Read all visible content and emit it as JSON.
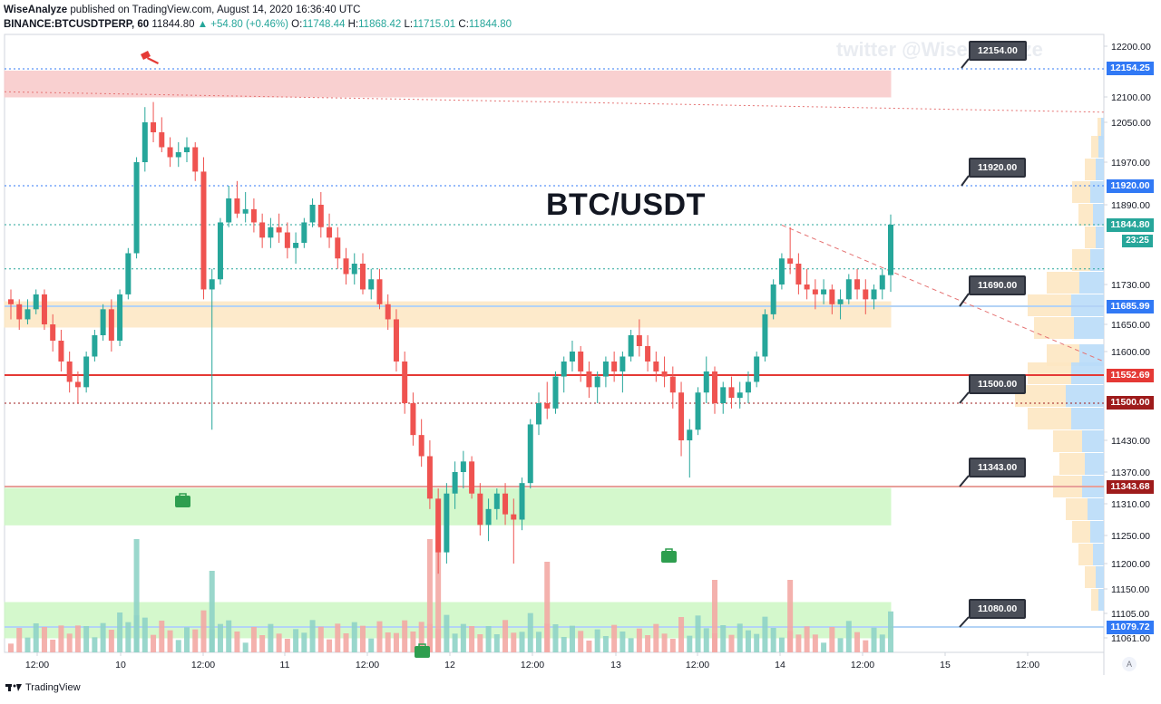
{
  "header": {
    "publisher": "WiseAnalyze",
    "published_text": "published on TradingView.com, August 14, 2020 16:36:40 UTC",
    "symbol": "BINANCE:BTCUSDTPERP, 60",
    "last": "11844.80",
    "change": "▲ +54.80 (+0.46%)",
    "o_label": "O:",
    "o_value": "11748.44",
    "h_label": "H:",
    "h_value": "11868.42",
    "l_label": "L:",
    "l_value": "11715.01",
    "c_label": "C:",
    "c_value": "11844.80"
  },
  "title": "BTC/USDT",
  "watermark": "twitter @WiseAnalyze",
  "footer_brand": "TradingView",
  "countdown": "23:25",
  "auto_label": "A",
  "callouts": [
    {
      "text": "12154.00"
    },
    {
      "text": "11920.00"
    },
    {
      "text": "11690.00"
    },
    {
      "text": "11500.00"
    },
    {
      "text": "11343.00"
    },
    {
      "text": "11080.00"
    }
  ],
  "price_labels": [
    {
      "text": "12154.25",
      "color": "#3179f5"
    },
    {
      "text": "11920.00",
      "color": "#3179f5"
    },
    {
      "text": "11844.80",
      "color": "#26a69a"
    },
    {
      "text": "11685.99",
      "color": "#3179f5"
    },
    {
      "text": "11552.69",
      "color": "#e53935"
    },
    {
      "text": "11500.00",
      "color": "#9e1b1b"
    },
    {
      "text": "11343.68",
      "color": "#9e1b1b"
    },
    {
      "text": "11079.72",
      "color": "#3179f5"
    }
  ],
  "chart_data": {
    "type": "candlestick",
    "y_ticks": [
      "12200.00",
      "12100.00",
      "12050.00",
      "11970.00",
      "11890.00",
      "11730.00",
      "11650.00",
      "11600.00",
      "11430.00",
      "11370.00",
      "11310.00",
      "11250.00",
      "11200.00",
      "11150.00",
      "11105.00",
      "11061.00"
    ],
    "x_ticks": [
      "12:00",
      "10",
      "12:00",
      "11",
      "12:00",
      "12",
      "12:00",
      "13",
      "12:00",
      "14",
      "12:00",
      "15",
      "12:00"
    ],
    "zones": [
      {
        "name": "resistance-zone",
        "from": 12100,
        "to": 12150,
        "color": "#f8c8c8"
      },
      {
        "name": "mid-zone",
        "from": 11645,
        "to": 11695,
        "color": "#fde7c2"
      },
      {
        "name": "support-zone",
        "from": 11270,
        "to": 11340,
        "color": "#cdf7c4"
      },
      {
        "name": "volume-zone",
        "from": 11061,
        "to": 11125,
        "color": "#cdf7c4"
      }
    ],
    "levels": [
      {
        "price": 12154.25,
        "style": "dotted",
        "color": "#3179f5"
      },
      {
        "price": 11920.0,
        "style": "dotted",
        "color": "#3179f5"
      },
      {
        "price": 11844.8,
        "style": "dotted",
        "color": "#26a69a"
      },
      {
        "price": 11760.0,
        "style": "dotted",
        "color": "#26a69a"
      },
      {
        "price": 11685.99,
        "style": "solid",
        "color": "#b3d3f6"
      },
      {
        "price": 11552.69,
        "style": "solid",
        "color": "#e53935"
      },
      {
        "price": 11500.0,
        "style": "dotted",
        "color": "#9e1b1b"
      },
      {
        "price": 11343.68,
        "style": "solid",
        "color": "#e8a09a"
      },
      {
        "price": 11079.72,
        "style": "solid",
        "color": "#b3d3f6"
      }
    ],
    "candles": [
      [
        11700,
        11720,
        11660,
        11690
      ],
      [
        11690,
        11700,
        11640,
        11660
      ],
      [
        11660,
        11700,
        11650,
        11680
      ],
      [
        11680,
        11720,
        11670,
        11710
      ],
      [
        11710,
        11720,
        11640,
        11650
      ],
      [
        11650,
        11670,
        11600,
        11620
      ],
      [
        11620,
        11640,
        11560,
        11580
      ],
      [
        11580,
        11600,
        11520,
        11540
      ],
      [
        11540,
        11560,
        11500,
        11530
      ],
      [
        11530,
        11600,
        11520,
        11590
      ],
      [
        11590,
        11640,
        11580,
        11630
      ],
      [
        11630,
        11690,
        11620,
        11680
      ],
      [
        11680,
        11700,
        11600,
        11620
      ],
      [
        11620,
        11720,
        11610,
        11710
      ],
      [
        11710,
        11800,
        11700,
        11790
      ],
      [
        11790,
        11980,
        11780,
        11970
      ],
      [
        11970,
        12080,
        11950,
        12050
      ],
      [
        12050,
        12090,
        12010,
        12030
      ],
      [
        12030,
        12060,
        11990,
        12000
      ],
      [
        12000,
        12020,
        11960,
        11980
      ],
      [
        11980,
        12010,
        11960,
        11990
      ],
      [
        11990,
        12020,
        11970,
        12000
      ],
      [
        12000,
        12010,
        11930,
        11950
      ],
      [
        11950,
        11980,
        11700,
        11720
      ],
      [
        11720,
        11760,
        11450,
        11740
      ],
      [
        11740,
        11860,
        11730,
        11850
      ],
      [
        11850,
        11920,
        11840,
        11900
      ],
      [
        11900,
        11930,
        11860,
        11870
      ],
      [
        11870,
        11910,
        11850,
        11880
      ],
      [
        11880,
        11900,
        11830,
        11850
      ],
      [
        11850,
        11870,
        11800,
        11820
      ],
      [
        11820,
        11860,
        11800,
        11840
      ],
      [
        11840,
        11870,
        11810,
        11830
      ],
      [
        11830,
        11850,
        11780,
        11800
      ],
      [
        11800,
        11830,
        11770,
        11810
      ],
      [
        11810,
        11860,
        11800,
        11850
      ],
      [
        11850,
        11900,
        11840,
        11890
      ],
      [
        11890,
        11910,
        11820,
        11840
      ],
      [
        11840,
        11870,
        11800,
        11820
      ],
      [
        11820,
        11840,
        11760,
        11780
      ],
      [
        11780,
        11800,
        11730,
        11750
      ],
      [
        11750,
        11790,
        11730,
        11770
      ],
      [
        11770,
        11790,
        11710,
        11720
      ],
      [
        11720,
        11760,
        11700,
        11740
      ],
      [
        11740,
        11760,
        11680,
        11690
      ],
      [
        11690,
        11710,
        11640,
        11660
      ],
      [
        11660,
        11680,
        11560,
        11580
      ],
      [
        11580,
        11600,
        11480,
        11500
      ],
      [
        11500,
        11520,
        11420,
        11440
      ],
      [
        11440,
        11470,
        11380,
        11400
      ],
      [
        11400,
        11430,
        11300,
        11320
      ],
      [
        11320,
        11340,
        11180,
        11220
      ],
      [
        11220,
        11350,
        11200,
        11330
      ],
      [
        11330,
        11390,
        11300,
        11370
      ],
      [
        11370,
        11410,
        11340,
        11390
      ],
      [
        11390,
        11400,
        11320,
        11330
      ],
      [
        11330,
        11350,
        11250,
        11270
      ],
      [
        11270,
        11320,
        11240,
        11300
      ],
      [
        11300,
        11340,
        11280,
        11330
      ],
      [
        11330,
        11350,
        11270,
        11290
      ],
      [
        11290,
        11320,
        11200,
        11280
      ],
      [
        11280,
        11360,
        11260,
        11350
      ],
      [
        11350,
        11470,
        11340,
        11460
      ],
      [
        11460,
        11520,
        11440,
        11500
      ],
      [
        11500,
        11540,
        11470,
        11490
      ],
      [
        11490,
        11560,
        11480,
        11550
      ],
      [
        11550,
        11590,
        11520,
        11580
      ],
      [
        11580,
        11620,
        11560,
        11600
      ],
      [
        11600,
        11610,
        11540,
        11560
      ],
      [
        11560,
        11580,
        11510,
        11530
      ],
      [
        11530,
        11560,
        11500,
        11550
      ],
      [
        11550,
        11590,
        11530,
        11580
      ],
      [
        11580,
        11600,
        11540,
        11560
      ],
      [
        11560,
        11600,
        11520,
        11590
      ],
      [
        11590,
        11640,
        11580,
        11630
      ],
      [
        11630,
        11660,
        11590,
        11610
      ],
      [
        11610,
        11630,
        11560,
        11580
      ],
      [
        11580,
        11600,
        11540,
        11560
      ],
      [
        11560,
        11590,
        11530,
        11550
      ],
      [
        11550,
        11570,
        11490,
        11520
      ],
      [
        11520,
        11540,
        11400,
        11430
      ],
      [
        11430,
        11470,
        11360,
        11450
      ],
      [
        11450,
        11530,
        11440,
        11520
      ],
      [
        11520,
        11590,
        11500,
        11560
      ],
      [
        11560,
        11570,
        11480,
        11500
      ],
      [
        11500,
        11540,
        11480,
        11530
      ],
      [
        11530,
        11550,
        11490,
        11510
      ],
      [
        11510,
        11540,
        11490,
        11520
      ],
      [
        11520,
        11560,
        11500,
        11540
      ],
      [
        11540,
        11600,
        11530,
        11590
      ],
      [
        11590,
        11680,
        11580,
        11670
      ],
      [
        11670,
        11740,
        11660,
        11730
      ],
      [
        11730,
        11790,
        11720,
        11780
      ],
      [
        11780,
        11840,
        11750,
        11770
      ],
      [
        11770,
        11790,
        11710,
        11730
      ],
      [
        11730,
        11760,
        11700,
        11720
      ],
      [
        11720,
        11740,
        11680,
        11710
      ],
      [
        11710,
        11740,
        11690,
        11720
      ],
      [
        11720,
        11730,
        11670,
        11690
      ],
      [
        11690,
        11720,
        11660,
        11700
      ],
      [
        11700,
        11750,
        11690,
        11740
      ],
      [
        11740,
        11760,
        11700,
        11720
      ],
      [
        11720,
        11740,
        11670,
        11700
      ],
      [
        11700,
        11730,
        11680,
        11720
      ],
      [
        11720,
        11760,
        11700,
        11748
      ],
      [
        11748,
        11868,
        11715,
        11845
      ]
    ],
    "last_price": 11844.8
  }
}
